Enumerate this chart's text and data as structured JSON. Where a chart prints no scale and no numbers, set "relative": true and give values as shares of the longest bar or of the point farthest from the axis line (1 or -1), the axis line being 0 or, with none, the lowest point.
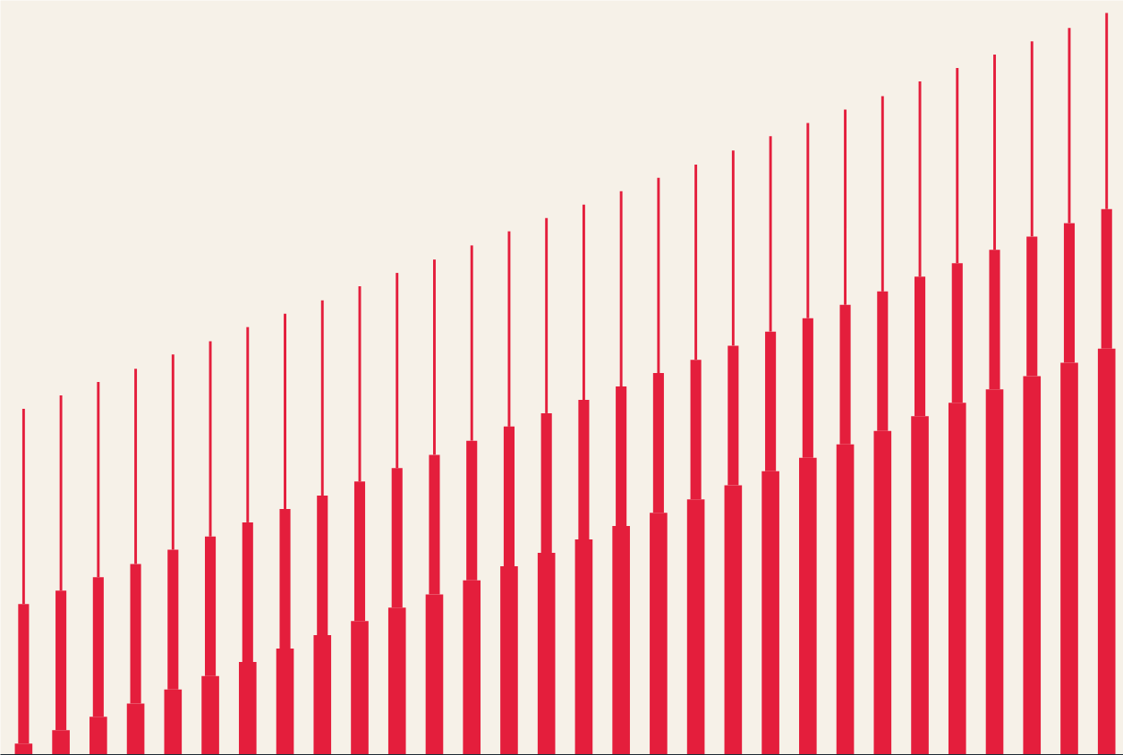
{
  "chart_data": {
    "type": "bar",
    "stacked": true,
    "relative": true,
    "categories": [
      null,
      null,
      null,
      null,
      null,
      null,
      null,
      null,
      null,
      null,
      null,
      null,
      null,
      null,
      null,
      null,
      null,
      null,
      null,
      null,
      null,
      null,
      null,
      null,
      null,
      null,
      null,
      null,
      null,
      null
    ],
    "series": [
      {
        "color": "#e41e3c",
        "values": [
          0.016,
          0.034,
          0.052,
          0.07,
          0.089,
          0.107,
          0.126,
          0.144,
          0.162,
          0.181,
          0.199,
          0.217,
          0.236,
          0.255,
          0.273,
          0.291,
          0.309,
          0.327,
          0.345,
          0.364,
          0.383,
          0.401,
          0.419,
          0.437,
          0.457,
          0.475,
          0.493,
          0.511,
          0.529,
          0.548
        ]
      },
      {
        "color": "#e41e3c",
        "values": [
          0.188,
          0.188,
          0.188,
          0.188,
          0.188,
          0.188,
          0.188,
          0.188,
          0.188,
          0.188,
          0.188,
          0.188,
          0.188,
          0.188,
          0.188,
          0.188,
          0.188,
          0.188,
          0.188,
          0.188,
          0.188,
          0.188,
          0.188,
          0.188,
          0.188,
          0.188,
          0.188,
          0.188,
          0.188,
          0.188
        ]
      },
      {
        "color": "#e41e3c",
        "values": [
          0.263,
          0.263,
          0.263,
          0.263,
          0.263,
          0.263,
          0.263,
          0.263,
          0.263,
          0.263,
          0.263,
          0.263,
          0.263,
          0.263,
          0.263,
          0.263,
          0.263,
          0.263,
          0.263,
          0.263,
          0.263,
          0.263,
          0.263,
          0.263,
          0.263,
          0.263,
          0.263,
          0.263,
          0.263,
          0.264
        ]
      }
    ]
  }
}
